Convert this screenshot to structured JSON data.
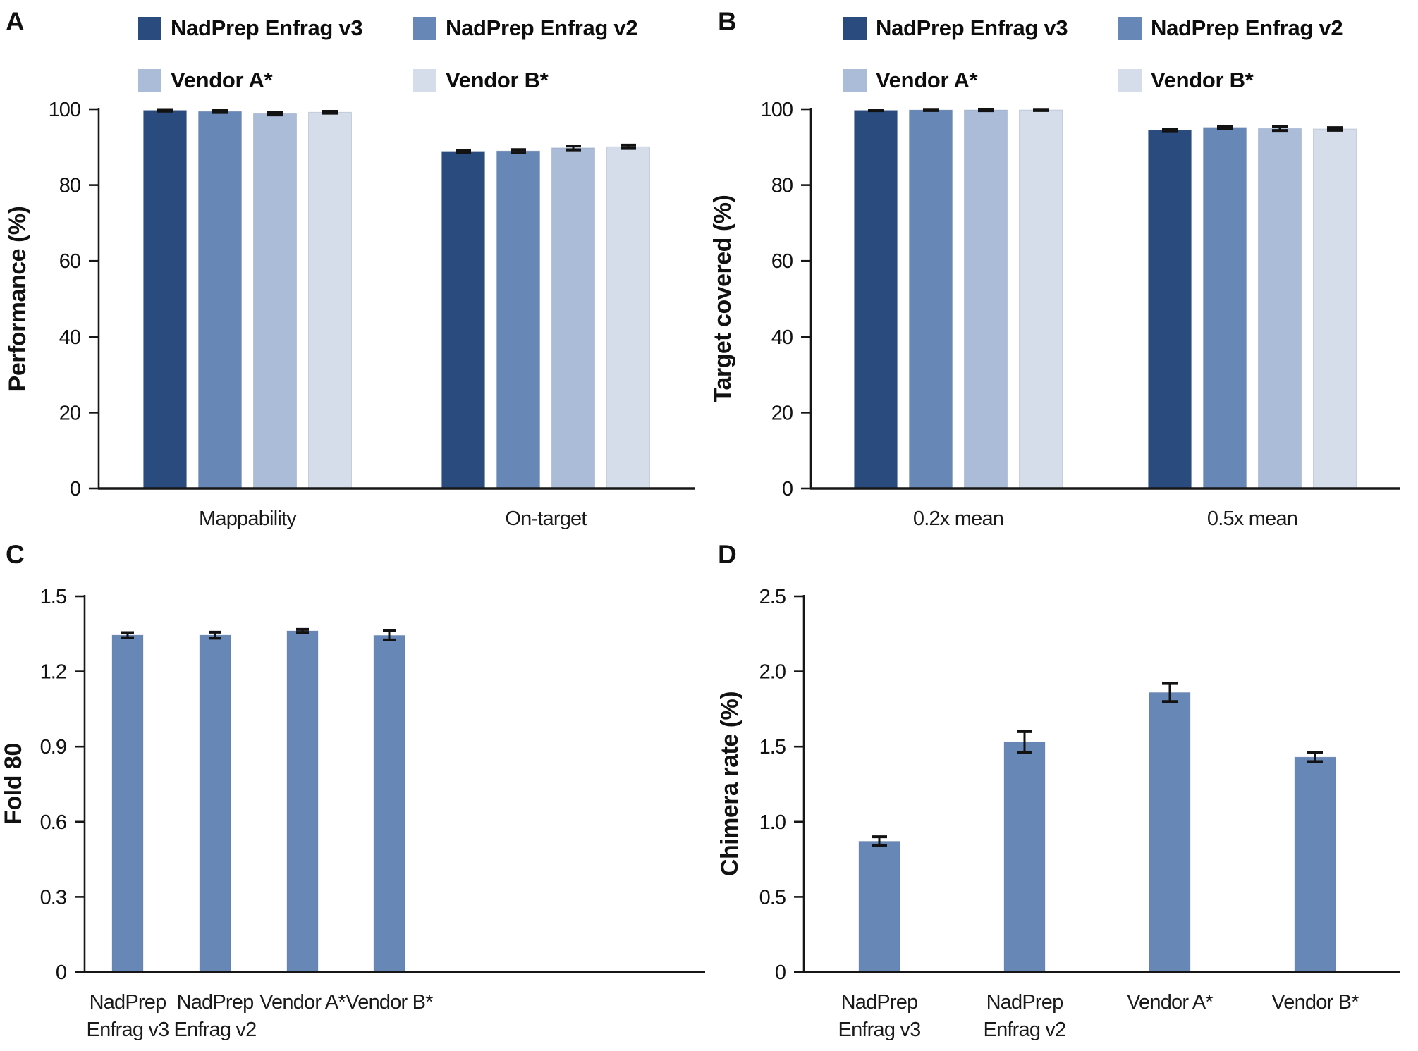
{
  "figure_title": "",
  "chart_data": [
    {
      "type": "bar",
      "panel_label": "A",
      "ylabel": "Performance (%)",
      "ylim": [
        0,
        100
      ],
      "yticks": [
        0,
        20,
        40,
        60,
        80,
        100
      ],
      "ytick_labels": [
        "0",
        "20",
        "40",
        "60",
        "80",
        "100"
      ],
      "categories": [
        "Mappability",
        "On-target"
      ],
      "legend": true,
      "legend_position": "top",
      "grid": false,
      "series": [
        {
          "name": "NadPrep Enfrag v3",
          "color": "#2a4b7e",
          "values": [
            99.7,
            88.9
          ],
          "errors": [
            0.2,
            0.3
          ]
        },
        {
          "name": "NadPrep Enfrag v2",
          "color": "#6787b6",
          "values": [
            99.4,
            89.0
          ],
          "errors": [
            0.25,
            0.35
          ]
        },
        {
          "name": "Vendor A*",
          "color": "#abbcd8",
          "values": [
            98.8,
            89.8
          ],
          "errors": [
            0.3,
            0.5
          ]
        },
        {
          "name": "Vendor B*",
          "color": "#d5ddea",
          "values": [
            99.2,
            90.1
          ],
          "errors": [
            0.25,
            0.45
          ]
        }
      ]
    },
    {
      "type": "bar",
      "panel_label": "B",
      "ylabel": "Target covered (%)",
      "ylim": [
        0,
        100
      ],
      "yticks": [
        0,
        20,
        40,
        60,
        80,
        100
      ],
      "ytick_labels": [
        "0",
        "20",
        "40",
        "60",
        "80",
        "100"
      ],
      "categories": [
        "0.2x mean",
        "0.5x mean"
      ],
      "legend": true,
      "legend_position": "top",
      "grid": false,
      "series": [
        {
          "name": "NadPrep Enfrag v3",
          "color": "#2a4b7e",
          "values": [
            99.7,
            94.5
          ],
          "errors": [
            0.1,
            0.2
          ]
        },
        {
          "name": "NadPrep Enfrag v2",
          "color": "#6787b6",
          "values": [
            99.8,
            95.2
          ],
          "errors": [
            0.15,
            0.35
          ]
        },
        {
          "name": "Vendor A*",
          "color": "#abbcd8",
          "values": [
            99.8,
            94.9
          ],
          "errors": [
            0.2,
            0.5
          ]
        },
        {
          "name": "Vendor B*",
          "color": "#d5ddea",
          "values": [
            99.8,
            94.8
          ],
          "errors": [
            0.15,
            0.35
          ]
        }
      ]
    },
    {
      "type": "bar",
      "panel_label": "C",
      "ylabel": "Fold 80",
      "ylim": [
        0,
        1.5
      ],
      "yticks": [
        0,
        0.3,
        0.6,
        0.9,
        1.2,
        1.5
      ],
      "ytick_labels": [
        "0",
        "0.3",
        "0.6",
        "0.9",
        "1.2",
        "1.5"
      ],
      "categories": [
        "NadPrep\nEnfrag v3",
        "NadPrep\nEnfrag v2",
        "Vendor A*",
        "Vendor B*"
      ],
      "legend": false,
      "grid": false,
      "series": [
        {
          "name": "Fold 80",
          "color": "#6787b6",
          "values": [
            1.345,
            1.345,
            1.362,
            1.344
          ],
          "errors": [
            0.01,
            0.012,
            0.006,
            0.018
          ]
        }
      ]
    },
    {
      "type": "bar",
      "panel_label": "D",
      "ylabel": "Chimera rate (%)",
      "ylim": [
        0,
        2.5
      ],
      "yticks": [
        0,
        0.5,
        1.0,
        1.5,
        2.0,
        2.5
      ],
      "ytick_labels": [
        "0",
        "0.5",
        "1.0",
        "1.5",
        "2.0",
        "2.5"
      ],
      "categories": [
        "NadPrep\nEnfrag v3",
        "NadPrep\nEnfrag v2",
        "Vendor A*",
        "Vendor B*"
      ],
      "legend": false,
      "grid": false,
      "series": [
        {
          "name": "Chimera rate",
          "color": "#6787b6",
          "values": [
            0.87,
            1.53,
            1.86,
            1.43
          ],
          "errors": [
            0.03,
            0.07,
            0.06,
            0.03
          ]
        }
      ]
    }
  ],
  "style": {
    "axis_color": "#161616",
    "error_bar_color": "#121212",
    "background": "#ffffff"
  }
}
